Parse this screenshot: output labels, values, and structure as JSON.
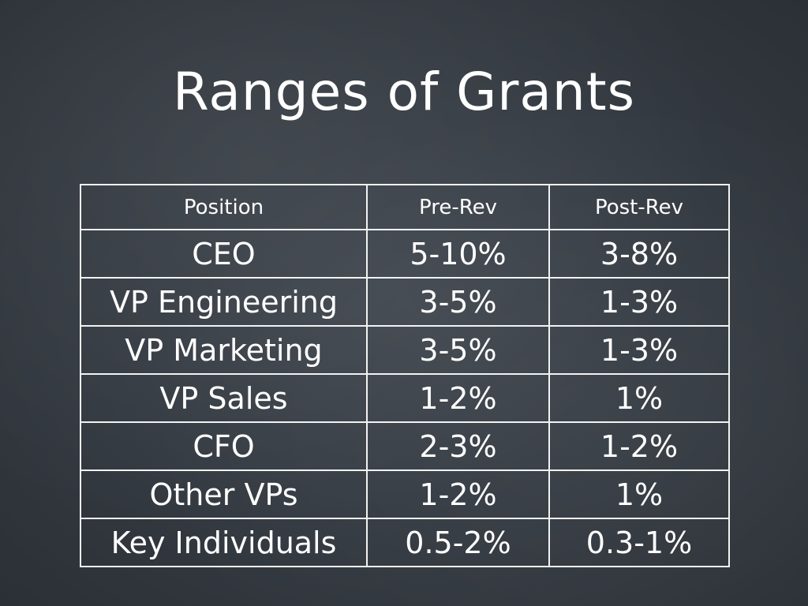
{
  "slide": {
    "title": "Ranges of Grants"
  },
  "table": {
    "headers": [
      "Position",
      "Pre-Rev",
      "Post-Rev"
    ],
    "rows": [
      [
        "CEO",
        "5-10%",
        "3-8%"
      ],
      [
        "VP Engineering",
        "3-5%",
        "1-3%"
      ],
      [
        "VP Marketing",
        "3-5%",
        "1-3%"
      ],
      [
        "VP Sales",
        "1-2%",
        "1%"
      ],
      [
        "CFO",
        "2-3%",
        "1-2%"
      ],
      [
        "Other VPs",
        "1-2%",
        "1%"
      ],
      [
        "Key Individuals",
        "0.5-2%",
        "0.3-1%"
      ]
    ]
  },
  "colors": {
    "background": "#343a41",
    "text": "#ffffff",
    "grid": "#f2f2f2"
  }
}
